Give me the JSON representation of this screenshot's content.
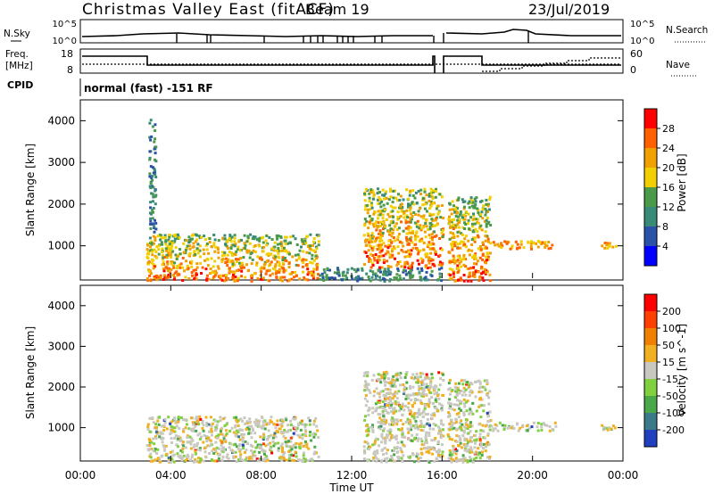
{
  "header": {
    "station": "Christmas Valley East (fitACF)",
    "beam": "Beam 19",
    "date": "23/Jul/2019"
  },
  "top_panels": {
    "nsky_label": "N.Sky",
    "nsky_ticks": [
      "10^5",
      "10^0"
    ],
    "nsearch_label": "N.Search",
    "nsearch_ticks": [
      "10^5",
      "10^0"
    ],
    "freq_label_1": "Freq.",
    "freq_label_2": "[MHz]",
    "freq_ticks": [
      "18",
      "8"
    ],
    "nave_label": "Nave",
    "nave_ticks": [
      "60",
      "0"
    ],
    "cpid_label": "CPID",
    "cpid_text": "normal (fast) -151 RF"
  },
  "x_axis": {
    "label": "Time UT",
    "ticks": [
      "00:00",
      "04:00",
      "08:00",
      "12:00",
      "16:00",
      "20:00",
      "00:00"
    ]
  },
  "chart_data": [
    {
      "type": "heatmap",
      "panel": "power",
      "ylabel": "Slant Range [km]",
      "y_ticks": [
        1000,
        2000,
        3000,
        4000
      ],
      "ylim": [
        180,
        4500
      ],
      "xlim_hours": [
        0,
        24
      ],
      "colorbar": {
        "label": "Power [dB]",
        "ticks": [
          "4",
          "8",
          "12",
          "16",
          "20",
          "24",
          "28"
        ],
        "colors": [
          "#0000ff",
          "#2a52a8",
          "#3a8a78",
          "#4a9a4a",
          "#f2d000",
          "#f0a000",
          "#ff6000",
          "#ff0000"
        ]
      },
      "echo_regions": [
        {
          "t": [
            2.9,
            10.5
          ],
          "r": [
            180,
            1300
          ],
          "level": "strong"
        },
        {
          "t": [
            3.0,
            3.3
          ],
          "r": [
            1300,
            4100
          ],
          "level": "weak"
        },
        {
          "t": [
            10.5,
            16.0
          ],
          "r": [
            180,
            500
          ],
          "level": "weak"
        },
        {
          "t": [
            12.5,
            16.0
          ],
          "r": [
            500,
            2400
          ],
          "level": "strong"
        },
        {
          "t": [
            16.2,
            18.1
          ],
          "r": [
            180,
            2200
          ],
          "level": "strong"
        },
        {
          "t": [
            18.1,
            21.0
          ],
          "r": [
            950,
            1150
          ],
          "level": "medium"
        },
        {
          "t": [
            23.0,
            23.9
          ],
          "r": [
            950,
            1100
          ],
          "level": "medium"
        }
      ]
    },
    {
      "type": "heatmap",
      "panel": "velocity",
      "ylabel": "Slant Range [km]",
      "y_ticks": [
        1000,
        2000,
        3000,
        4000
      ],
      "ylim": [
        180,
        4500
      ],
      "xlim_hours": [
        0,
        24
      ],
      "colorbar": {
        "label": "Velocity [m s^-1]",
        "ticks": [
          "200",
          "100",
          "50",
          "15",
          "-15",
          "-50",
          "-100",
          "-200"
        ],
        "colors": [
          "#2040c0",
          "#3a7a8a",
          "#4aa84a",
          "#80d040",
          "#c8c8c0",
          "#f0b020",
          "#f08000",
          "#ff4000",
          "#ff0000"
        ]
      },
      "echo_regions": [
        {
          "t": [
            2.9,
            10.5
          ],
          "r": [
            180,
            1300
          ],
          "level": "mixed"
        },
        {
          "t": [
            12.5,
            16.0
          ],
          "r": [
            180,
            2400
          ],
          "level": "mixed"
        },
        {
          "t": [
            16.2,
            18.1
          ],
          "r": [
            180,
            2200
          ],
          "level": "mixed"
        },
        {
          "t": [
            18.1,
            21.0
          ],
          "r": [
            950,
            1150
          ],
          "level": "mixed"
        },
        {
          "t": [
            23.0,
            23.9
          ],
          "r": [
            950,
            1100
          ],
          "level": "mixed"
        }
      ]
    }
  ],
  "colors": {
    "line": "#000000",
    "background": "#ffffff"
  }
}
